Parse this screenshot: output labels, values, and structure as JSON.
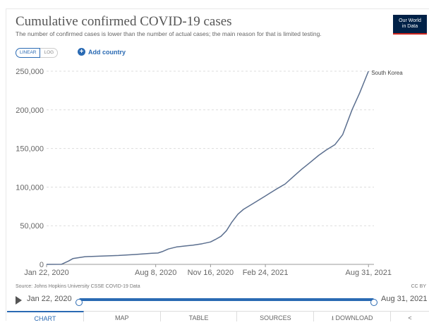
{
  "header": {
    "title": "Cumulative confirmed COVID-19 cases",
    "subtitle": "The number of confirmed cases is lower than the number of actual cases; the main reason for that is limited testing.",
    "logo_line1": "Our World",
    "logo_line2": "in Data"
  },
  "controls": {
    "linear_label": "LINEAR",
    "log_label": "LOG",
    "add_country_label": "Add country"
  },
  "chart_data": {
    "type": "line",
    "title": "Cumulative confirmed COVID-19 cases",
    "x_tick_labels": [
      "Jan 22, 2020",
      "Aug 8, 2020",
      "Nov 16, 2020",
      "Feb 24, 2021",
      "Aug 31, 2021"
    ],
    "x_tick_dates": [
      "2020-01-22",
      "2020-08-08",
      "2020-11-16",
      "2021-02-24",
      "2021-08-31"
    ],
    "y_ticks": [
      0,
      50000,
      100000,
      150000,
      200000,
      250000
    ],
    "y_tick_labels": [
      "0",
      "50,000",
      "100,000",
      "150,000",
      "200,000",
      "250,000"
    ],
    "xlim": [
      "2020-01-22",
      "2021-09-10"
    ],
    "ylim": [
      0,
      250000
    ],
    "grid": "horizontal dashed",
    "series": [
      {
        "name": "South Korea",
        "color": "#5b6f8f",
        "points": [
          [
            "2020-01-22",
            0
          ],
          [
            "2020-02-18",
            100
          ],
          [
            "2020-03-02",
            4300
          ],
          [
            "2020-03-10",
            7500
          ],
          [
            "2020-04-01",
            9900
          ],
          [
            "2020-05-01",
            10800
          ],
          [
            "2020-06-01",
            11500
          ],
          [
            "2020-07-01",
            12800
          ],
          [
            "2020-08-01",
            14300
          ],
          [
            "2020-08-12",
            14700
          ],
          [
            "2020-08-20",
            16500
          ],
          [
            "2020-08-31",
            19900
          ],
          [
            "2020-09-15",
            22500
          ],
          [
            "2020-10-01",
            23800
          ],
          [
            "2020-10-15",
            24900
          ],
          [
            "2020-11-01",
            26700
          ],
          [
            "2020-11-16",
            29000
          ],
          [
            "2020-11-25",
            32300
          ],
          [
            "2020-12-05",
            36300
          ],
          [
            "2020-12-15",
            43500
          ],
          [
            "2020-12-25",
            54800
          ],
          [
            "2021-01-05",
            65000
          ],
          [
            "2021-01-15",
            71200
          ],
          [
            "2021-02-01",
            78500
          ],
          [
            "2021-02-24",
            88500
          ],
          [
            "2021-03-15",
            97000
          ],
          [
            "2021-04-01",
            104000
          ],
          [
            "2021-04-15",
            113000
          ],
          [
            "2021-05-01",
            123000
          ],
          [
            "2021-05-15",
            131000
          ],
          [
            "2021-06-01",
            141000
          ],
          [
            "2021-06-15",
            148000
          ],
          [
            "2021-07-01",
            155000
          ],
          [
            "2021-07-15",
            168000
          ],
          [
            "2021-08-01",
            200000
          ],
          [
            "2021-08-15",
            222000
          ],
          [
            "2021-08-31",
            250000
          ]
        ]
      }
    ]
  },
  "footer": {
    "source": "Source: Johns Hopkins University CSSE COVID-19 Data",
    "license": "CC BY",
    "timeline_start": "Jan 22, 2020",
    "timeline_end": "Aug 31, 2021",
    "tabs": [
      "CHART",
      "MAP",
      "TABLE",
      "SOURCES",
      "⭳ DOWNLOAD",
      "<"
    ]
  }
}
